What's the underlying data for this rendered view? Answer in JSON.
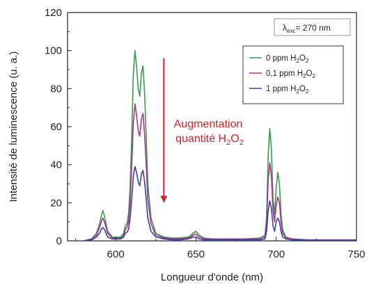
{
  "chart_data": {
    "type": "line",
    "xlabel": "Longueur d'onde (nm)",
    "ylabel": "Intensité de luminescence (u. a.)",
    "xlim": [
      570,
      750
    ],
    "ylim": [
      0,
      120
    ],
    "xticks": [
      600,
      650,
      700,
      750
    ],
    "yticks": [
      0,
      20,
      40,
      60,
      80,
      100,
      120
    ],
    "grid": false,
    "legend_position": "top-right",
    "excitation_label": {
      "lambda": "λ",
      "sub": "exc",
      "text": "= 270 nm"
    },
    "annotation": {
      "line1": "Augmentation",
      "line2_prefix": "quantité H",
      "sub1": "2",
      "mid": "O",
      "sub2": "2",
      "arrow_x": 630,
      "arrow_from": 96,
      "arrow_to": 20,
      "color": "#d2232a"
    },
    "series": [
      {
        "name": "0 ppm H2O2",
        "legend": {
          "prefix": "0 ppm H",
          "sub1": "2",
          "mid": "O",
          "sub2": "2"
        },
        "color": "#3a9a4e",
        "x": [
          580,
          585,
          588,
          590,
          591,
          592,
          593,
          595,
          598,
          600,
          603,
          605,
          606,
          607,
          608,
          609,
          610,
          611,
          612,
          613,
          614,
          615,
          616,
          617,
          618,
          619,
          620,
          622,
          625,
          630,
          635,
          640,
          645,
          647,
          648,
          650,
          652,
          655,
          660,
          670,
          680,
          690,
          693,
          694,
          695,
          696,
          697,
          698,
          699,
          700,
          701,
          702,
          703,
          704,
          706,
          710,
          720,
          730,
          740,
          750
        ],
        "y": [
          0,
          1,
          4,
          9,
          13,
          16,
          13,
          5,
          2,
          2,
          2,
          4,
          8,
          9,
          14,
          28,
          55,
          88,
          100,
          92,
          80,
          76,
          88,
          92,
          78,
          55,
          30,
          12,
          4,
          2,
          1.5,
          1.5,
          2,
          3,
          4,
          5,
          3,
          1.5,
          1,
          1,
          1,
          1.5,
          3,
          12,
          45,
          59,
          48,
          22,
          14,
          28,
          36,
          30,
          14,
          6,
          2,
          1,
          0.5,
          0.5,
          0.5,
          0.5
        ]
      },
      {
        "name": "0,1 ppm H2O2",
        "legend": {
          "prefix": "0,1 ppm H",
          "sub1": "2",
          "mid": "O",
          "sub2": "2"
        },
        "color": "#a7338c",
        "x": [
          580,
          585,
          588,
          590,
          591,
          592,
          593,
          595,
          598,
          600,
          603,
          605,
          606,
          607,
          608,
          609,
          610,
          611,
          612,
          613,
          614,
          615,
          616,
          617,
          618,
          619,
          620,
          622,
          625,
          630,
          635,
          640,
          645,
          647,
          648,
          650,
          652,
          655,
          660,
          670,
          680,
          690,
          693,
          694,
          695,
          696,
          697,
          698,
          699,
          700,
          701,
          702,
          703,
          704,
          706,
          710,
          720,
          730,
          740,
          750
        ],
        "y": [
          0,
          1,
          3,
          7,
          10,
          12,
          10,
          4,
          1.5,
          1.5,
          1.5,
          3,
          6,
          7,
          10,
          20,
          40,
          62,
          72,
          66,
          58,
          55,
          64,
          67,
          56,
          40,
          22,
          9,
          3,
          1.5,
          1,
          1,
          1.5,
          2,
          3,
          3.5,
          2,
          1,
          1,
          1,
          1,
          1,
          2,
          9,
          32,
          41,
          34,
          16,
          10,
          19,
          23,
          20,
          10,
          4,
          1.5,
          1,
          0.5,
          0.5,
          0.5,
          0.5
        ]
      },
      {
        "name": "1 ppm H2O2",
        "legend": {
          "prefix": "1 ppm H",
          "sub1": "2",
          "mid": "O",
          "sub2": "2"
        },
        "color": "#3a3f9a",
        "x": [
          580,
          585,
          588,
          590,
          591,
          592,
          593,
          595,
          598,
          600,
          603,
          605,
          606,
          607,
          608,
          609,
          610,
          611,
          612,
          613,
          614,
          615,
          616,
          617,
          618,
          619,
          620,
          622,
          625,
          630,
          635,
          640,
          645,
          647,
          648,
          650,
          652,
          655,
          660,
          670,
          680,
          690,
          693,
          694,
          695,
          696,
          697,
          698,
          699,
          700,
          701,
          702,
          703,
          704,
          706,
          710,
          720,
          730,
          740,
          750
        ],
        "y": [
          0,
          0.5,
          2,
          4,
          6,
          7,
          6,
          2,
          1,
          1,
          1,
          2,
          4,
          4.5,
          6,
          12,
          22,
          34,
          39,
          36,
          31,
          29,
          35,
          37,
          31,
          22,
          12,
          5,
          2,
          1,
          0.5,
          0.5,
          1,
          1.5,
          2,
          2,
          1,
          0.5,
          0.5,
          0.5,
          0.5,
          0.5,
          1,
          5,
          16,
          21,
          17,
          8,
          5,
          10,
          12,
          10,
          5,
          2,
          1,
          0.5,
          0.3,
          0.3,
          0.3,
          0.3
        ]
      }
    ]
  }
}
